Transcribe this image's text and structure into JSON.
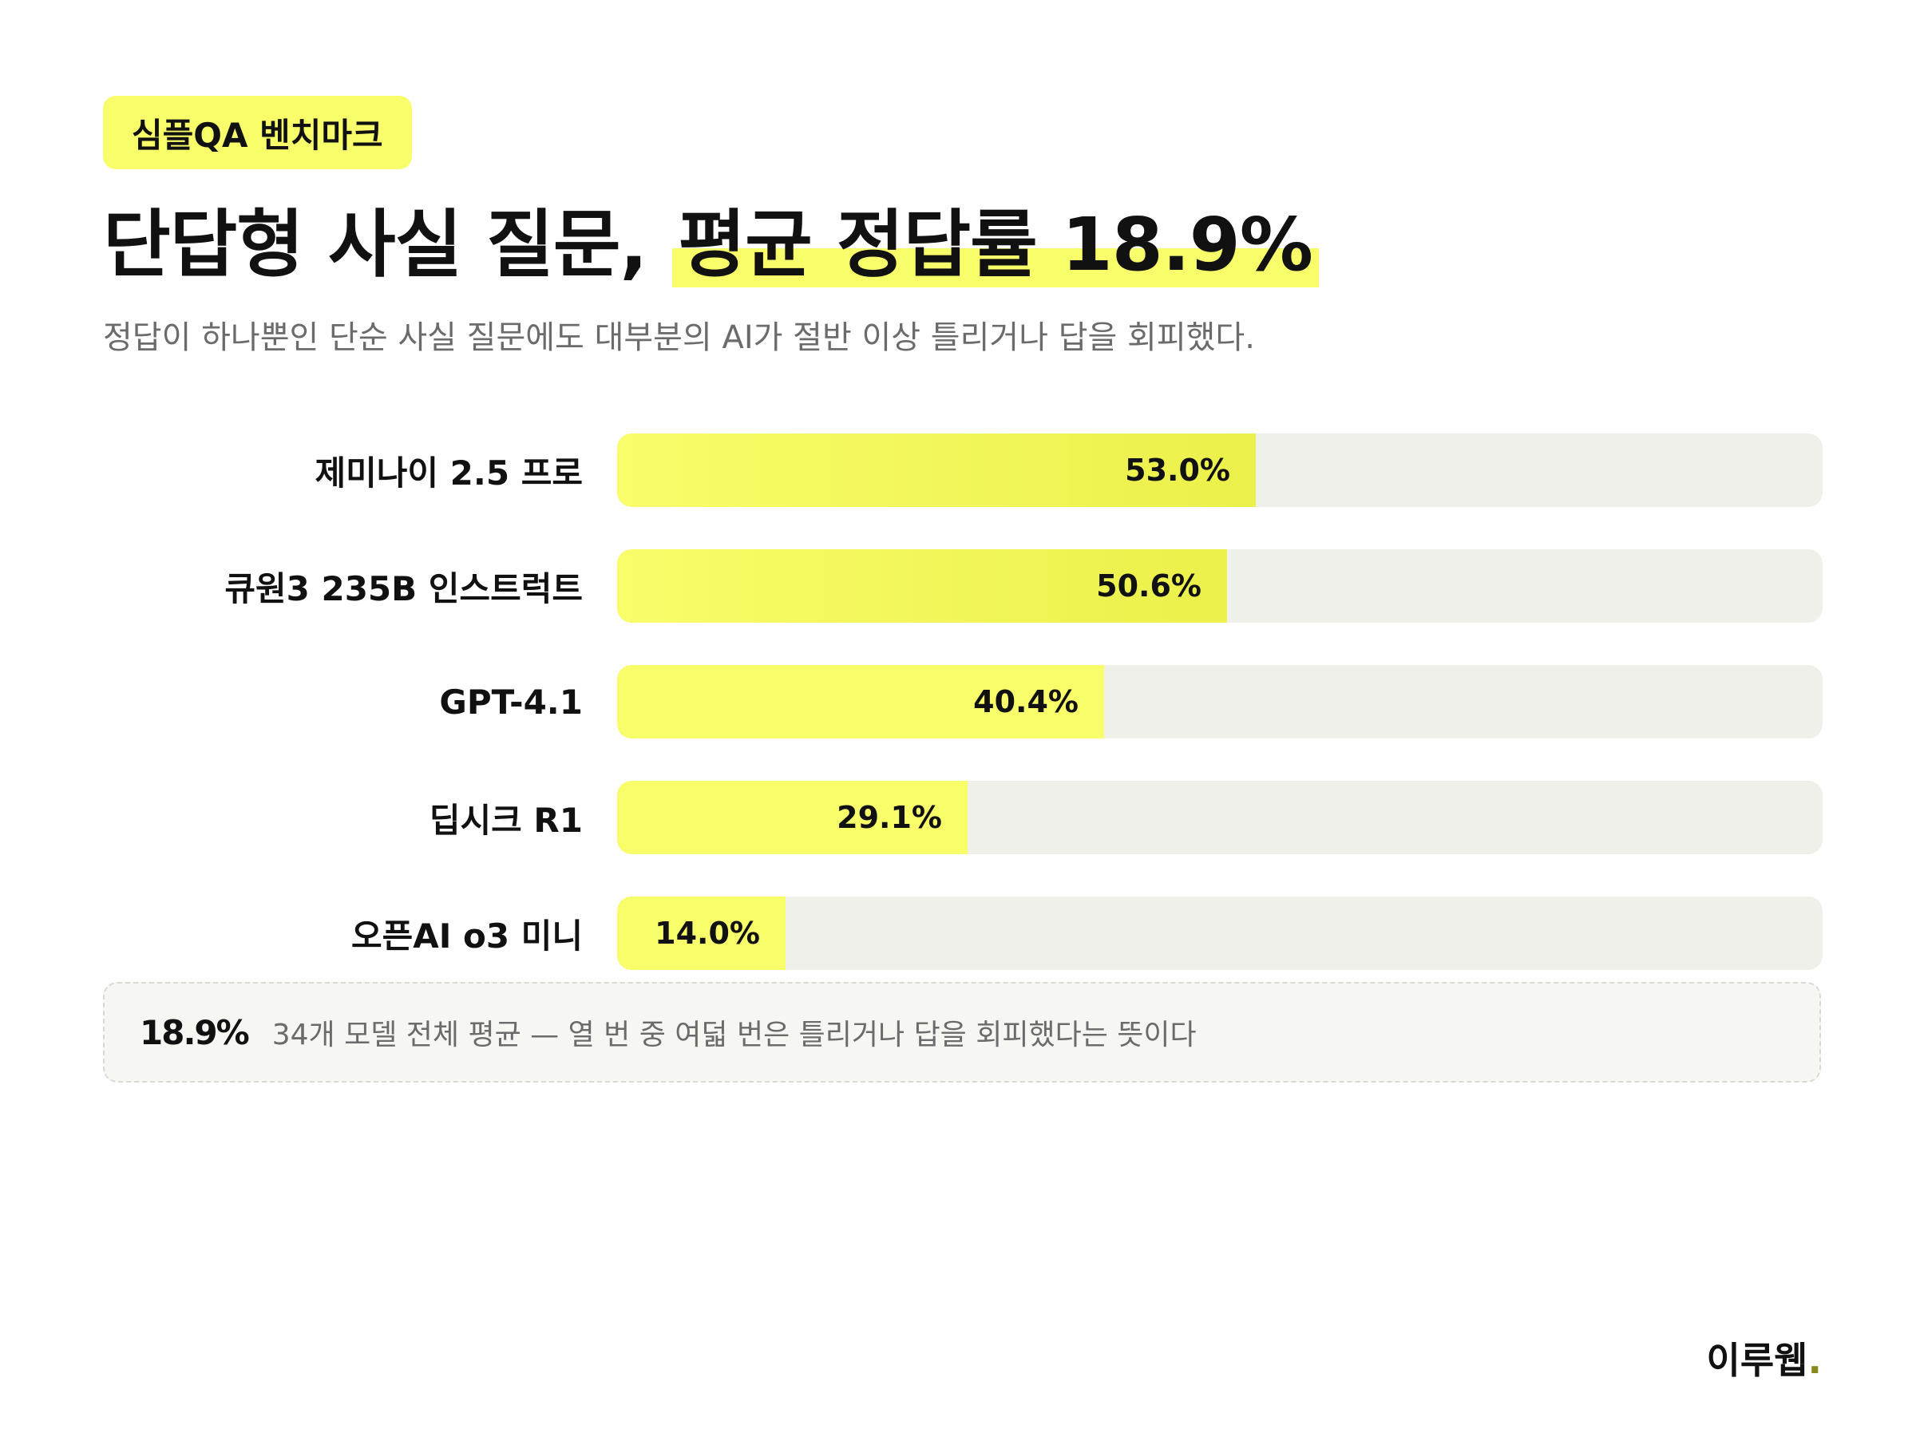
{
  "tag": "심플QA 벤치마크",
  "headline": {
    "lead": "단답형 사실 질문, ",
    "highlight": "평균 정답률 18.9%"
  },
  "subtitle": "정답이 하나뿐인 단순 사실 질문에도 대부분의 AI가 절반 이상 틀리거나 답을 회피했다.",
  "colors": {
    "bar": "#f8fd6a",
    "bar_top": "#ecf04a",
    "track": "#f0f0eb"
  },
  "chart_data": {
    "type": "bar",
    "orientation": "horizontal",
    "xlim": [
      0,
      100
    ],
    "categories": [
      "제미나이 2.5 프로",
      "큐원3 235B 인스트럭트",
      "GPT-4.1",
      "딥시크 R1",
      "오픈AI o3 미니"
    ],
    "values": [
      53.0,
      50.6,
      40.4,
      29.1,
      14.0
    ],
    "value_labels": [
      "53.0%",
      "50.6%",
      "40.4%",
      "29.1%",
      "14.0%"
    ]
  },
  "note": {
    "value": "18.9%",
    "text": "34개 모델 전체 평균 — 열 번 중 여덟 번은 틀리거나 답을 회피했다는 뜻이다"
  },
  "brand": {
    "name": "이루웹",
    "dot": "."
  }
}
